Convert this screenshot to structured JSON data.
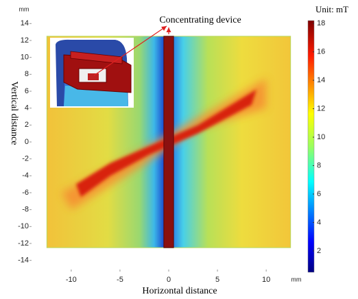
{
  "chart_data": {
    "type": "heatmap",
    "xlabel": "Horizontal distance",
    "ylabel": "Vertical distance",
    "x_unit": "mm",
    "y_unit": "mm",
    "xlim": [
      -14,
      14
    ],
    "ylim": [
      -15,
      15
    ],
    "xticks": [
      -10,
      -5,
      0,
      5,
      10
    ],
    "yticks": [
      -14,
      -12,
      -10,
      -8,
      -6,
      -4,
      -2,
      0,
      2,
      4,
      6,
      8,
      10,
      12,
      14
    ],
    "field_xlim": [
      -12.5,
      12.5
    ],
    "field_ylim": [
      -12.5,
      12.5
    ],
    "device_xlim": [
      -0.5,
      0.5
    ],
    "annotation": "Concentrating device",
    "colorbar": {
      "label": "Unit: mT",
      "clim": [
        0.5,
        18.2
      ],
      "ticks": [
        2,
        4,
        6,
        8,
        10,
        12,
        14,
        16,
        18
      ]
    }
  }
}
